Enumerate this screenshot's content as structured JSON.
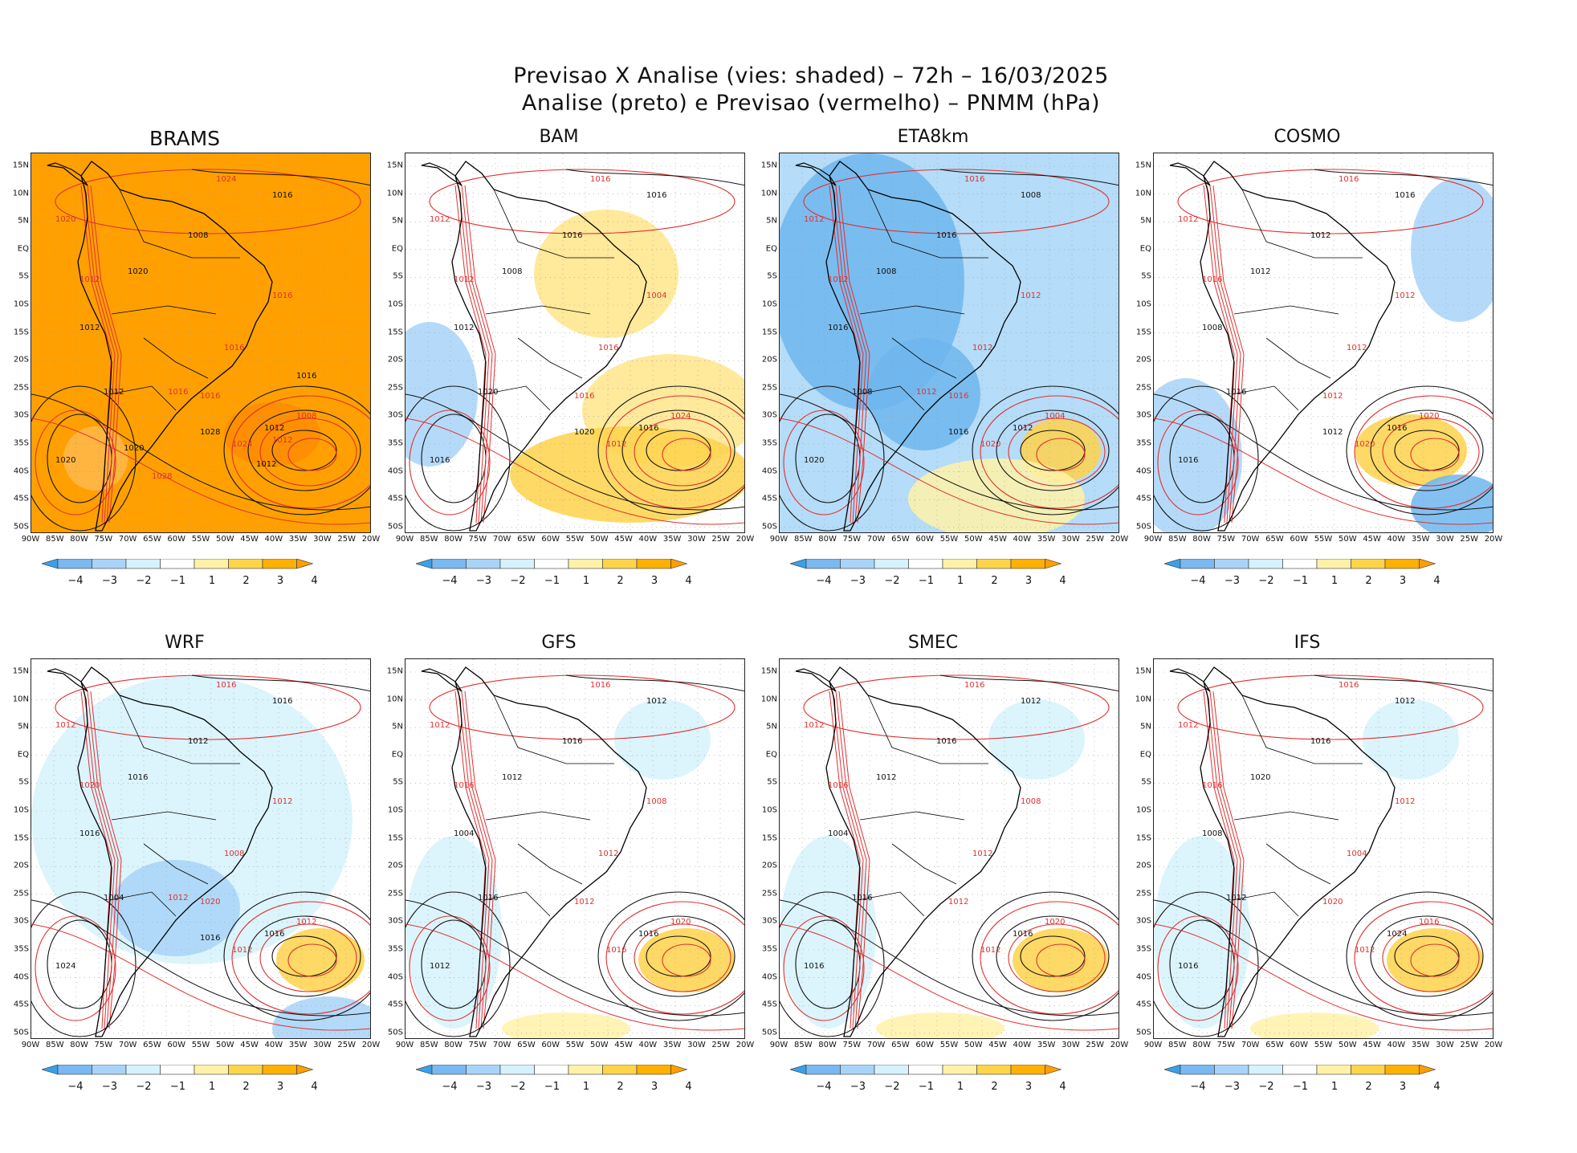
{
  "title": {
    "line1": "Previsao X Analise (vies: shaded) – 72h – 16/03/2025",
    "line2": "Analise (preto) e Previsao (vermelho) – PNMM (hPa)"
  },
  "axes": {
    "lat_labels": [
      "15N",
      "10N",
      "5N",
      "EQ",
      "5S",
      "10S",
      "15S",
      "20S",
      "25S",
      "30S",
      "35S",
      "40S",
      "45S",
      "50S"
    ],
    "lon_labels": [
      "90W",
      "85W",
      "80W",
      "75W",
      "70W",
      "65W",
      "60W",
      "55W",
      "50W",
      "45W",
      "40W",
      "35W",
      "30W",
      "25W",
      "20W"
    ]
  },
  "colorbar": {
    "labels": [
      "−4",
      "−3",
      "−2",
      "−1",
      "1",
      "2",
      "3",
      "4"
    ],
    "colors": [
      "#3aa0e8",
      "#7ab8f0",
      "#a8d4f8",
      "#d6f2fc",
      "#ffffff",
      "#fff2a8",
      "#ffd44a",
      "#ffb000",
      "#ff9e00"
    ]
  },
  "colors": {
    "analysis_contour": "#111111",
    "forecast_contour": "#e03030",
    "positive_bias": "#ffa500",
    "negative_bias": "#6fb6ee"
  },
  "panels": [
    {
      "name": "BRAMS",
      "bias": "strong-positive",
      "labels": [
        "1024",
        "1016",
        "1020",
        "1008",
        "1012",
        "1020",
        "1016",
        "1012",
        "1016",
        "1012",
        "1008",
        "1012",
        "1016",
        "1020",
        "1024",
        "1028",
        "1016",
        "1020",
        "1028",
        "1012",
        "1012",
        "1016"
      ]
    },
    {
      "name": "BAM",
      "bias": "mixed",
      "labels": [
        "1016",
        "1016",
        "1012",
        "1016",
        "1012",
        "1008",
        "1004",
        "1012",
        "1016",
        "1020",
        "1024",
        "1016",
        "1016",
        "1016",
        "1012",
        "1020"
      ]
    },
    {
      "name": "ETA8km",
      "bias": "negative",
      "labels": [
        "1016",
        "1008",
        "1012",
        "1016",
        "1012",
        "1008",
        "1012",
        "1016",
        "1012",
        "1008",
        "1004",
        "1012",
        "1016",
        "1020",
        "1020",
        "1016",
        "1012"
      ]
    },
    {
      "name": "COSMO",
      "bias": "mixed-negative",
      "labels": [
        "1016",
        "1016",
        "1012",
        "1012",
        "1016",
        "1012",
        "1012",
        "1008",
        "1012",
        "1016",
        "1020",
        "1016",
        "1012",
        "1016",
        "1020",
        "1012"
      ]
    },
    {
      "name": "WRF",
      "bias": "light-negative",
      "labels": [
        "1016",
        "1016",
        "1012",
        "1012",
        "1020",
        "1016",
        "1012",
        "1016",
        "1008",
        "1004",
        "1012",
        "1016",
        "1020",
        "1024",
        "1012",
        "1016",
        "1012"
      ]
    },
    {
      "name": "GFS",
      "bias": "light",
      "labels": [
        "1016",
        "1012",
        "1012",
        "1016",
        "1016",
        "1012",
        "1008",
        "1004",
        "1012",
        "1016",
        "1020",
        "1016",
        "1012",
        "1012",
        "1016"
      ]
    },
    {
      "name": "SMEC",
      "bias": "light",
      "labels": [
        "1016",
        "1012",
        "1012",
        "1016",
        "1016",
        "1012",
        "1008",
        "1004",
        "1012",
        "1016",
        "1020",
        "1016",
        "1012",
        "1016",
        "1012"
      ]
    },
    {
      "name": "IFS",
      "bias": "light",
      "labels": [
        "1016",
        "1012",
        "1012",
        "1016",
        "1016",
        "1020",
        "1012",
        "1008",
        "1004",
        "1012",
        "1016",
        "1024",
        "1020",
        "1016",
        "1012"
      ]
    }
  ]
}
